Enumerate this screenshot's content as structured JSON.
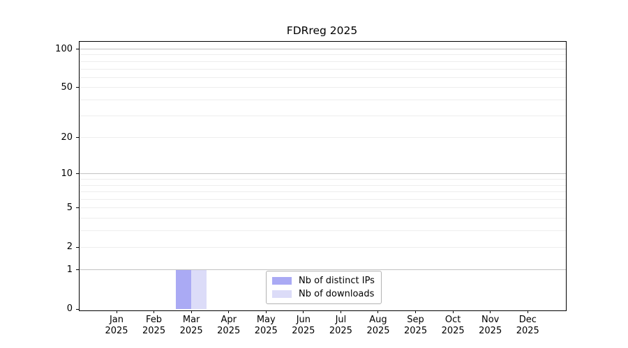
{
  "title": "FDRreg 2025",
  "chart_data": {
    "type": "bar",
    "title": "FDRreg 2025",
    "categories": [
      {
        "month": "Jan",
        "year": "2025"
      },
      {
        "month": "Feb",
        "year": "2025"
      },
      {
        "month": "Mar",
        "year": "2025"
      },
      {
        "month": "Apr",
        "year": "2025"
      },
      {
        "month": "May",
        "year": "2025"
      },
      {
        "month": "Jun",
        "year": "2025"
      },
      {
        "month": "Jul",
        "year": "2025"
      },
      {
        "month": "Aug",
        "year": "2025"
      },
      {
        "month": "Sep",
        "year": "2025"
      },
      {
        "month": "Oct",
        "year": "2025"
      },
      {
        "month": "Nov",
        "year": "2025"
      },
      {
        "month": "Dec",
        "year": "2025"
      }
    ],
    "series": [
      {
        "name": "Nb of distinct IPs",
        "color": "#aaaaf4",
        "values": [
          0,
          0,
          1,
          0,
          0,
          0,
          0,
          0,
          0,
          0,
          0,
          0
        ]
      },
      {
        "name": "Nb of downloads",
        "color": "#dcdcf8",
        "values": [
          0,
          0,
          1,
          0,
          0,
          0,
          0,
          0,
          0,
          0,
          0,
          0
        ]
      }
    ],
    "y_axis": {
      "scale": "log1p",
      "min": 0,
      "max": 114,
      "labeled_ticks": [
        0,
        1,
        2,
        5,
        10,
        20,
        50,
        100
      ],
      "major_gridlines": [
        1,
        10,
        100
      ],
      "minor_gridlines": [
        2,
        3,
        4,
        5,
        6,
        7,
        8,
        9,
        20,
        30,
        40,
        50,
        60,
        70,
        80,
        90
      ]
    },
    "legend_position": "lower center",
    "grid": true
  },
  "colors": {
    "background": "#ffffff",
    "axis": "#000000",
    "major_grid": "#c2c2c2",
    "minor_grid": "#ededed",
    "legend_border": "#b3b3b3",
    "bar_distinct_ips": "#aaaaf4",
    "bar_downloads": "#dcdcf8"
  }
}
